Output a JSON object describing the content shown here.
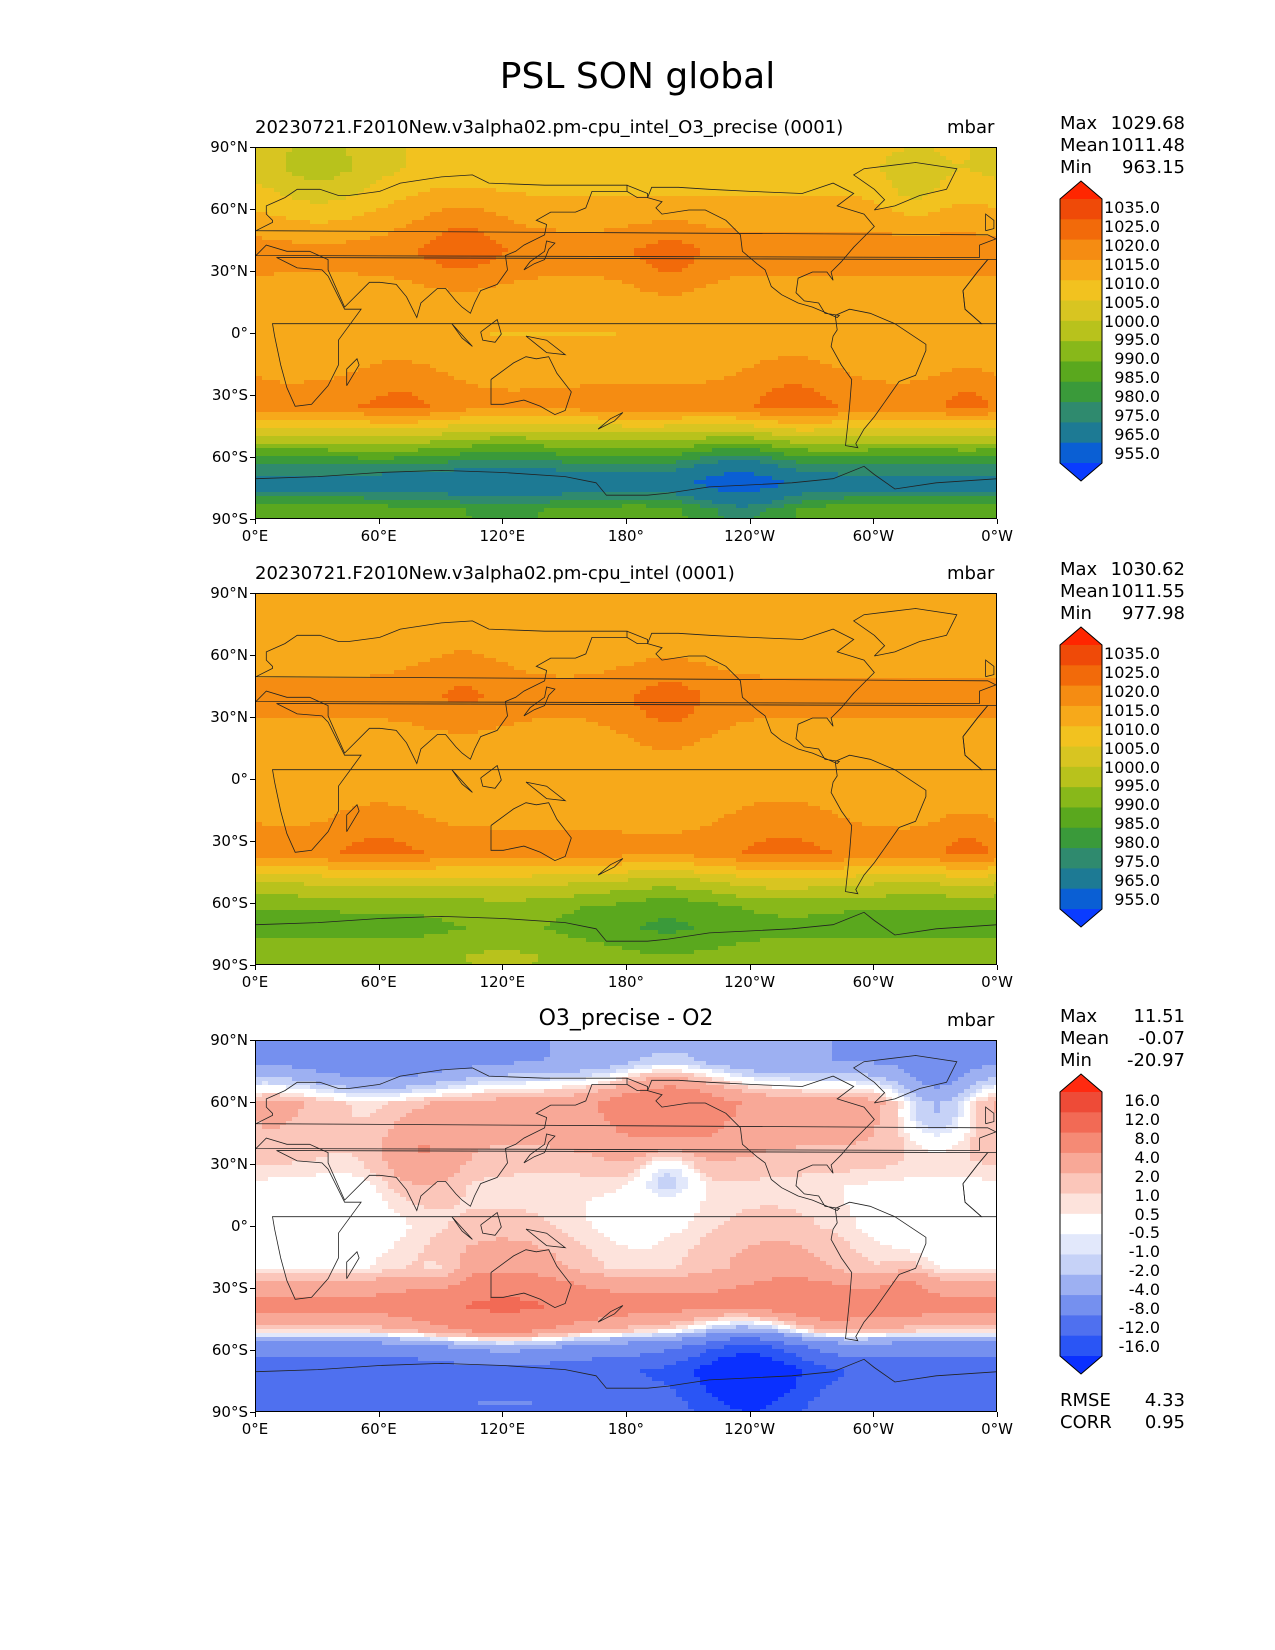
{
  "figure": {
    "title": "PSL SON global"
  },
  "axes": {
    "lat_ticks": [
      "90°N",
      "60°N",
      "30°N",
      "0°",
      "30°S",
      "60°S",
      "90°S"
    ],
    "lon_ticks": [
      "0°E",
      "60°E",
      "120°E",
      "180°",
      "120°W",
      "60°W",
      "0°W"
    ]
  },
  "panels": [
    {
      "title": "20230721.F2010New.v3alpha02.pm-cpu_intel_O3_precise (0001)",
      "units": "mbar",
      "stats": {
        "max_label": "Max",
        "max": "1029.68",
        "mean_label": "Mean",
        "mean": "1011.48",
        "min_label": "Min",
        "min": "963.15"
      },
      "colorbar_labels": [
        "1035.0",
        "1025.0",
        "1020.0",
        "1015.0",
        "1010.0",
        "1005.0",
        "1000.0",
        "995.0",
        "990.0",
        "985.0",
        "980.0",
        "975.0",
        "965.0",
        "955.0"
      ]
    },
    {
      "title": "20230721.F2010New.v3alpha02.pm-cpu_intel (0001)",
      "units": "mbar",
      "stats": {
        "max_label": "Max",
        "max": "1030.62",
        "mean_label": "Mean",
        "mean": "1011.55",
        "min_label": "Min",
        "min": "977.98"
      },
      "colorbar_labels": [
        "1035.0",
        "1025.0",
        "1020.0",
        "1015.0",
        "1010.0",
        "1005.0",
        "1000.0",
        "995.0",
        "990.0",
        "985.0",
        "980.0",
        "975.0",
        "965.0",
        "955.0"
      ]
    },
    {
      "title": "O3_precise - O2",
      "units": "mbar",
      "stats": {
        "max_label": "Max",
        "max": "11.51",
        "mean_label": "Mean",
        "mean": "-0.07",
        "min_label": "Min",
        "min": "-20.97"
      },
      "colorbar_labels": [
        "16.0",
        "12.0",
        "8.0",
        "4.0",
        "2.0",
        "1.0",
        "0.5",
        "-0.5",
        "-1.0",
        "-2.0",
        "-4.0",
        "-8.0",
        "-12.0",
        "-16.0"
      ],
      "metrics": {
        "rmse_label": "RMSE",
        "rmse": "4.33",
        "corr_label": "CORR",
        "corr": "0.95"
      }
    }
  ],
  "chart_data": [
    {
      "type": "heatmap",
      "title": "20230721.F2010New.v3alpha02.pm-cpu_intel_O3_precise (0001)",
      "variable": "PSL",
      "season": "SON",
      "units": "mbar",
      "xlim": [
        0,
        360
      ],
      "ylim": [
        -90,
        90
      ],
      "lat_bands": [
        {
          "lat": 80,
          "value": 1006
        },
        {
          "lat": 60,
          "value": 1012
        },
        {
          "lat": 40,
          "value": 1018
        },
        {
          "lat": 20,
          "value": 1013
        },
        {
          "lat": 0,
          "value": 1010
        },
        {
          "lat": -20,
          "value": 1014
        },
        {
          "lat": -35,
          "value": 1018
        },
        {
          "lat": -50,
          "value": 998
        },
        {
          "lat": -62,
          "value": 982
        },
        {
          "lat": -72,
          "value": 970
        },
        {
          "lat": -85,
          "value": 988
        }
      ],
      "stats": {
        "max": 1029.68,
        "mean": 1011.48,
        "min": 963.15
      },
      "levels": [
        955,
        965,
        975,
        980,
        985,
        990,
        995,
        1000,
        1005,
        1010,
        1015,
        1020,
        1025,
        1035
      ]
    },
    {
      "type": "heatmap",
      "title": "20230721.F2010New.v3alpha02.pm-cpu_intel (0001)",
      "variable": "PSL",
      "season": "SON",
      "units": "mbar",
      "xlim": [
        0,
        360
      ],
      "ylim": [
        -90,
        90
      ],
      "lat_bands": [
        {
          "lat": 80,
          "value": 1012
        },
        {
          "lat": 60,
          "value": 1013
        },
        {
          "lat": 40,
          "value": 1017
        },
        {
          "lat": 20,
          "value": 1013
        },
        {
          "lat": 0,
          "value": 1011
        },
        {
          "lat": -20,
          "value": 1014
        },
        {
          "lat": -35,
          "value": 1018
        },
        {
          "lat": -50,
          "value": 1000
        },
        {
          "lat": -62,
          "value": 990
        },
        {
          "lat": -72,
          "value": 988
        },
        {
          "lat": -85,
          "value": 993
        }
      ],
      "stats": {
        "max": 1030.62,
        "mean": 1011.55,
        "min": 977.98
      },
      "levels": [
        955,
        965,
        975,
        980,
        985,
        990,
        995,
        1000,
        1005,
        1010,
        1015,
        1020,
        1025,
        1035
      ]
    },
    {
      "type": "heatmap",
      "title": "O3_precise - O2",
      "variable": "PSL difference",
      "units": "mbar",
      "xlim": [
        0,
        360
      ],
      "ylim": [
        -90,
        90
      ],
      "lat_bands": [
        {
          "lat": 80,
          "value": -4
        },
        {
          "lat": 60,
          "value": 3
        },
        {
          "lat": 40,
          "value": 2
        },
        {
          "lat": 20,
          "value": 0.3
        },
        {
          "lat": 0,
          "value": 0
        },
        {
          "lat": -20,
          "value": 0.3
        },
        {
          "lat": -38,
          "value": 5
        },
        {
          "lat": -50,
          "value": 1
        },
        {
          "lat": -58,
          "value": -6
        },
        {
          "lat": -70,
          "value": -12
        },
        {
          "lat": -85,
          "value": -9
        }
      ],
      "stats": {
        "max": 11.51,
        "mean": -0.07,
        "min": -20.97
      },
      "rmse": 4.33,
      "corr": 0.95,
      "levels": [
        -16,
        -12,
        -8,
        -4,
        -2,
        -1,
        -0.5,
        0.5,
        1,
        2,
        4,
        8,
        12,
        16
      ]
    }
  ],
  "colors": {
    "psl_palette": [
      "#0a3cff",
      "#0a5fd4",
      "#1d7a94",
      "#2f8a6e",
      "#3a9a3a",
      "#5aa81e",
      "#88b81a",
      "#b8c21c",
      "#d8c521",
      "#f2c21f",
      "#f7a91a",
      "#f58c12",
      "#f26a0a",
      "#ef4a08",
      "#ff2600"
    ],
    "diff_palette": [
      "#0a30ff",
      "#2a55f5",
      "#4f70ef",
      "#7590ef",
      "#9db0f2",
      "#c6d2f7",
      "#e2e8fb",
      "#ffffff",
      "#fde3dc",
      "#fbc6ba",
      "#f8a897",
      "#f58a75",
      "#f26a55",
      "#ee4b37",
      "#ff2a10"
    ]
  }
}
